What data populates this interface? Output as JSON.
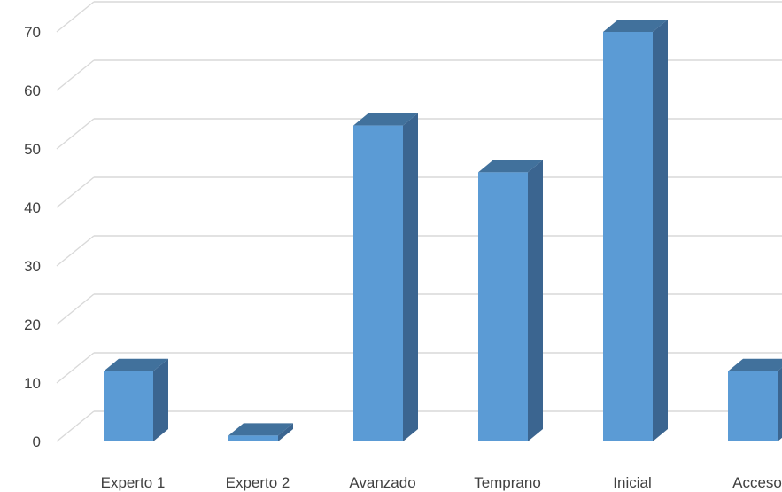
{
  "chart_data": {
    "type": "bar",
    "title": "",
    "xlabel": "",
    "ylabel": "",
    "categories": [
      "Experto 1",
      "Experto 2",
      "Avanzado",
      "Temprano",
      "Inicial",
      "Acceso"
    ],
    "values": [
      12,
      1,
      54,
      46,
      70,
      12
    ],
    "ylim": [
      0,
      75
    ],
    "yticks": [
      0,
      10,
      20,
      30,
      40,
      50,
      60,
      70
    ],
    "grid": true,
    "legend": "none",
    "style": "3d-column",
    "colors": {
      "front": "#5b9bd5",
      "top": "#41719c",
      "side": "#3b6590",
      "grid": "#d9d9d9",
      "text": "#404040"
    }
  }
}
